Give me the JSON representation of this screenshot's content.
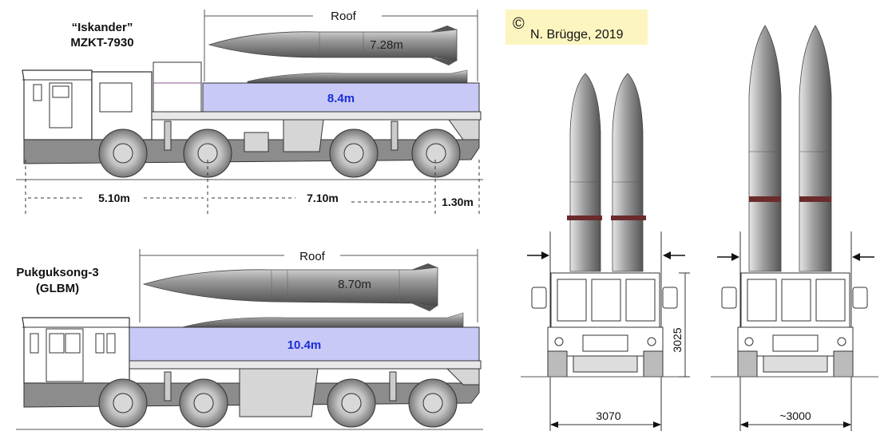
{
  "iskander": {
    "name_line1": "“Iskander”",
    "name_line2": "MZKT-7930",
    "roof_label": "Roof",
    "missile_length": "7.28m",
    "container_length": "8.4m",
    "dim_front": "5.10m",
    "dim_middle": "7.10m",
    "dim_rear": "1.30m"
  },
  "pukguksong": {
    "name_line1": "Pukguksong-3",
    "name_line2": "(GLBM)",
    "roof_label": "Roof",
    "missile_length": "8.70m",
    "container_length": "10.4m"
  },
  "copyright": {
    "symbol": "©",
    "text": "N. Brügge, 2019",
    "bg_color": "#fdf5c0"
  },
  "front_views": {
    "left_width": "3070",
    "left_height": "3025",
    "right_width": "~3000"
  },
  "colors": {
    "container_fill": "#c9c9f7",
    "container_text": "#1a2fd6",
    "chassis": "#8c8c8c",
    "band": "#6b2b2b"
  }
}
